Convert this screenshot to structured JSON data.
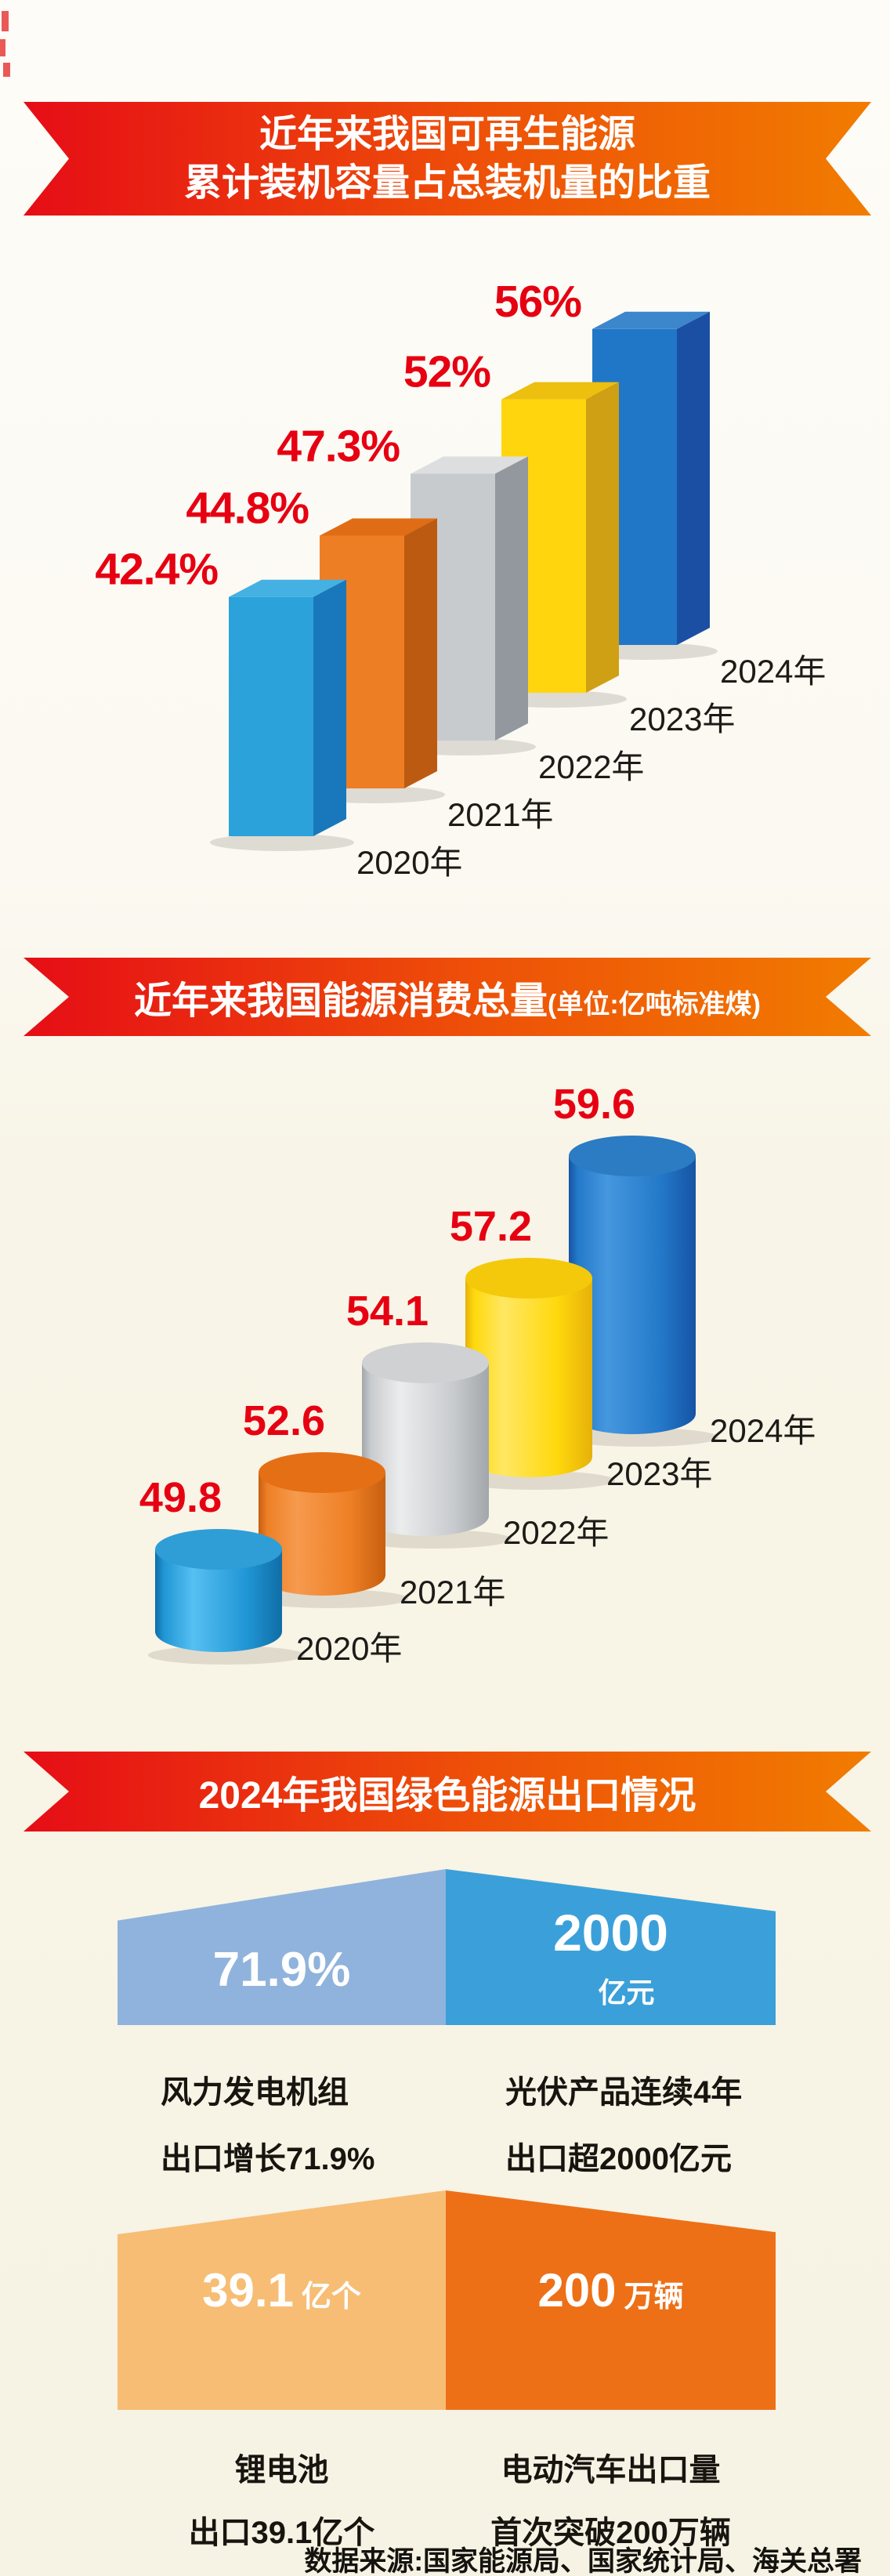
{
  "banners": [
    {
      "line1": "近年来我国可再生能源",
      "line2": "累计装机容量占总装机量的比重"
    },
    {
      "main": "近年来我国能源消费总量",
      "unit": "(单位:亿吨标准煤)"
    },
    {
      "main": "2024年我国绿色能源出口情况"
    }
  ],
  "chart_data": [
    {
      "type": "bar",
      "shape": "3d-box",
      "title": "近年来我国可再生能源累计装机容量占总装机量的比重",
      "unit": "%",
      "categories": [
        "2020年",
        "2021年",
        "2022年",
        "2023年",
        "2024年"
      ],
      "values": [
        42.4,
        44.8,
        47.3,
        52,
        56
      ],
      "value_labels": [
        "42.4%",
        "44.8%",
        "47.3%",
        "52%",
        "56%"
      ],
      "label_color": "#e60012",
      "year_label_color": "#1d1b18",
      "legend": "none",
      "grid": false,
      "series_colors": [
        {
          "front": "#2ba2da",
          "top": "#45b1e2",
          "side": "#1878bb"
        },
        {
          "front": "#ee7e24",
          "top": "#e06d15",
          "side": "#bd5a12"
        },
        {
          "front": "#c8cbce",
          "top": "#dcdee0",
          "side": "#92989d"
        },
        {
          "front": "#ffd60d",
          "top": "#edbf0e",
          "side": "#cfa013"
        },
        {
          "front": "#2177c7",
          "top": "#3c86cc",
          "side": "#1b4fa3"
        }
      ]
    },
    {
      "type": "bar",
      "shape": "3d-cylinder",
      "title": "近年来我国能源消费总量",
      "unit": "亿吨标准煤",
      "categories": [
        "2020年",
        "2021年",
        "2022年",
        "2023年",
        "2024年"
      ],
      "values": [
        49.8,
        52.6,
        54.1,
        57.2,
        59.6
      ],
      "value_labels": [
        "49.8",
        "52.6",
        "54.1",
        "57.2",
        "59.6"
      ],
      "label_color": "#e60012",
      "year_label_color": "#1d1b18",
      "legend": "none",
      "grid": false,
      "series_colors": [
        {
          "light": "#55c0f2",
          "mid": "#2196d5",
          "dark": "#0f6da6",
          "top": "#2f9ed7"
        },
        {
          "light": "#f69a4e",
          "mid": "#ee8025",
          "dark": "#c75f0f",
          "top": "#e56f15"
        },
        {
          "light": "#eceded",
          "mid": "#c8cbce",
          "dark": "#a2a7ab",
          "top": "#cfd1d3"
        },
        {
          "light": "#ffe763",
          "mid": "#ffd90d",
          "dark": "#e6b109",
          "top": "#f4c90c"
        },
        {
          "light": "#4597de",
          "mid": "#2479c9",
          "dark": "#1653a5",
          "top": "#2b7cc3"
        }
      ]
    }
  ],
  "exports": {
    "wind": {
      "value": "71.9%",
      "caption_line1": "风力发电机组",
      "caption_line2": "出口增长71.9%"
    },
    "solar": {
      "value": "2000",
      "unit": "亿元",
      "caption_line1": "光伏产品连续4年",
      "caption_line2": "出口超2000亿元"
    },
    "battery": {
      "value": "39.1",
      "unit": "亿个",
      "caption_line1": "锂电池",
      "caption_line2": "出口39.1亿个"
    },
    "ev": {
      "value": "200",
      "unit": "万辆",
      "caption_line1": "电动汽车出口量",
      "caption_line2": "首次突破200万辆"
    }
  },
  "footer": {
    "text": "数据来源:国家能源局、国家统计局、海关总署"
  },
  "colors": {
    "banner_gradient_left": "#e60d16",
    "banner_gradient_right": "#f17c00",
    "value_label": "#e60012",
    "panel_wind": "#8fb3dc",
    "panel_solar": "#3ba0d9",
    "panel_battery": "#f7bd74",
    "panel_ev": "#ed7017",
    "background_top": "#fdfcf8",
    "background_bottom": "#f7f3e4"
  }
}
